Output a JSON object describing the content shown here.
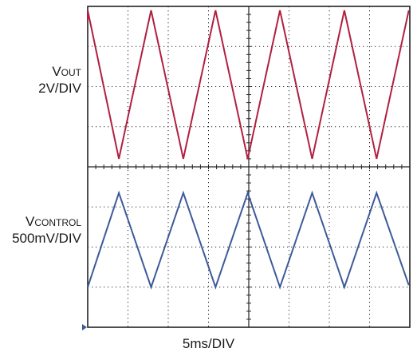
{
  "labels": {
    "vout_main": "V",
    "vout_sub": "OUT",
    "vout_scale": "2V/DIV",
    "vctl_main": "V",
    "vctl_sub": "CONTROL",
    "vctl_scale": "500mV/DIV",
    "time_scale": "5ms/DIV"
  },
  "colors": {
    "vout_trace": "#b02040",
    "vcontrol_trace": "#3c5a9a",
    "grid": "#222222",
    "marker": "#3c5a9a"
  },
  "chart_data": {
    "type": "line",
    "grid": {
      "x_divisions": 8,
      "y_divisions": 8,
      "minor_ticks_per_division": 5,
      "dotted": true
    },
    "series": [
      {
        "name": "VOUT",
        "scale": "2V/DIV",
        "x_div": [
          0.0,
          0.0,
          0.775,
          1.575,
          2.375,
          3.175,
          3.975,
          4.775,
          5.575,
          6.375,
          7.175,
          7.975
        ],
        "y_div": [
          7.65,
          7.9,
          4.2,
          7.9,
          4.2,
          7.9,
          4.2,
          7.9,
          4.2,
          7.9,
          4.2,
          7.9
        ]
      },
      {
        "name": "VCONTROL",
        "scale": "500mV/DIV",
        "x_div": [
          0.0,
          0.775,
          1.575,
          2.375,
          3.175,
          3.975,
          4.775,
          5.575,
          6.375,
          7.175,
          7.975
        ],
        "y_div": [
          1.0,
          3.35,
          1.0,
          3.35,
          1.0,
          3.35,
          1.0,
          3.35,
          1.0,
          3.35,
          1.05
        ]
      }
    ]
  }
}
